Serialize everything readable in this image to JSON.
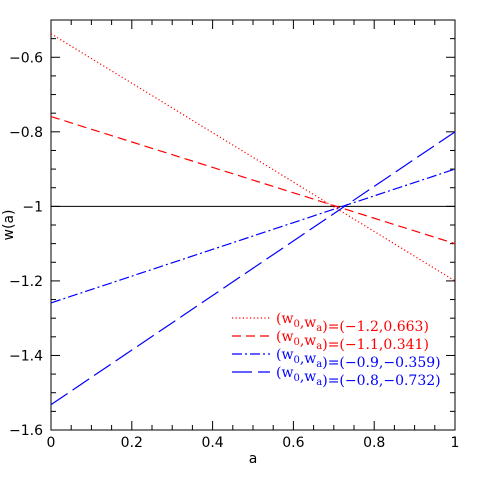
{
  "chart_data": {
    "type": "line",
    "xlabel": "a",
    "ylabel": "w(a)",
    "xlim": [
      0,
      1
    ],
    "ylim": [
      -1.6,
      -0.5
    ],
    "xticks": [
      0,
      0.2,
      0.4,
      0.6,
      0.8,
      1
    ],
    "xtick_labels": [
      "0",
      "0.2",
      "0.4",
      "0.6",
      "0.8",
      "1"
    ],
    "yticks": [
      -1.6,
      -1.4,
      -1.2,
      -1,
      -0.8,
      -0.6
    ],
    "ytick_labels": [
      "−1.6",
      "−1.4",
      "−1.2",
      "−1",
      "−0.8",
      "−0.6"
    ],
    "grid": false,
    "legend_position": "bottom-right",
    "reference_line": {
      "y": -1,
      "color": "#000000"
    },
    "series": [
      {
        "w0": "−1.2",
        "wa": "0.663",
        "color": "#ff0000",
        "dash": "dotted",
        "x": [
          0,
          1
        ],
        "y": [
          -0.537,
          -1.2
        ]
      },
      {
        "w0": "−1.1",
        "wa": "0.341",
        "color": "#ff0000",
        "dash": "dashed",
        "x": [
          0,
          1
        ],
        "y": [
          -0.759,
          -1.1
        ]
      },
      {
        "w0": "−0.9",
        "wa": "−0.359",
        "color": "#0000ff",
        "dash": "dashdot",
        "x": [
          0,
          1
        ],
        "y": [
          -1.259,
          -0.9
        ]
      },
      {
        "w0": "−0.8",
        "wa": "−0.732",
        "color": "#0000ff",
        "dash": "longdash",
        "x": [
          0,
          1
        ],
        "y": [
          -1.532,
          -0.8
        ]
      }
    ]
  }
}
